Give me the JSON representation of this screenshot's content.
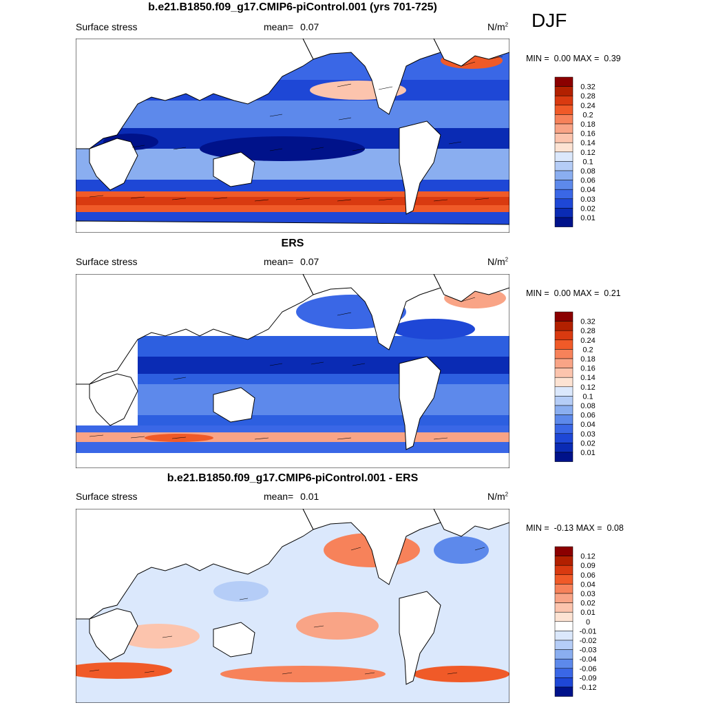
{
  "season": "DJF",
  "unit_base": "N/m",
  "unit_exp": "2",
  "panels": [
    {
      "title": "b.e21.B1850.f09_g17.CMIP6-piControl.001 (yrs 701-725)",
      "left_label": "Surface stress",
      "mean_label": "mean=",
      "mean_value": "0.07",
      "min_label": "MIN =",
      "min_value": "0.00",
      "max_label": "MAX =",
      "max_value": "0.39",
      "colorbar": {
        "labels": [
          "0.32",
          "0.28",
          "0.24",
          "0.2",
          "0.18",
          "0.16",
          "0.14",
          "0.12",
          "0.1",
          "0.08",
          "0.06",
          "0.04",
          "0.03",
          "0.02",
          "0.01"
        ],
        "colors": [
          "#8b0000",
          "#b22000",
          "#d93a10",
          "#f05a28",
          "#f7825a",
          "#f9a486",
          "#fcc4ad",
          "#fde3d3",
          "#dbe8fc",
          "#b5cdf7",
          "#8aaef0",
          "#5d89eb",
          "#3a67e6",
          "#1e47d6",
          "#0a2bb4",
          "#00128a"
        ]
      }
    },
    {
      "title": "ERS",
      "left_label": "Surface stress",
      "mean_label": "mean=",
      "mean_value": "0.07",
      "min_label": "MIN =",
      "min_value": "0.00",
      "max_label": "MAX =",
      "max_value": "0.21",
      "colorbar": {
        "labels": [
          "0.32",
          "0.28",
          "0.24",
          "0.2",
          "0.18",
          "0.16",
          "0.14",
          "0.12",
          "0.1",
          "0.08",
          "0.06",
          "0.04",
          "0.03",
          "0.02",
          "0.01"
        ],
        "colors": [
          "#8b0000",
          "#b22000",
          "#d93a10",
          "#f05a28",
          "#f7825a",
          "#f9a486",
          "#fcc4ad",
          "#fde3d3",
          "#dbe8fc",
          "#b5cdf7",
          "#8aaef0",
          "#5d89eb",
          "#3a67e6",
          "#1e47d6",
          "#0a2bb4",
          "#00128a"
        ]
      }
    },
    {
      "title": "b.e21.B1850.f09_g17.CMIP6-piControl.001 - ERS",
      "left_label": "Surface stress",
      "mean_label": "mean=",
      "mean_value": "0.01",
      "min_label": "MIN =",
      "min_value": "-0.13",
      "max_label": "MAX =",
      "max_value": "0.08",
      "colorbar": {
        "labels": [
          "0.12",
          "0.09",
          "0.06",
          "0.04",
          "0.03",
          "0.02",
          "0.01",
          "0",
          "-0.01",
          "-0.02",
          "-0.03",
          "-0.04",
          "-0.06",
          "-0.09",
          "-0.12"
        ],
        "colors": [
          "#8b0000",
          "#b22000",
          "#d93a10",
          "#f05a28",
          "#f7825a",
          "#f9a486",
          "#fcc4ad",
          "#fde3d3",
          "#ffffff",
          "#dbe8fc",
          "#b5cdf7",
          "#8aaef0",
          "#5d89eb",
          "#3a67e6",
          "#1e47d6",
          "#00128a"
        ]
      }
    }
  ]
}
